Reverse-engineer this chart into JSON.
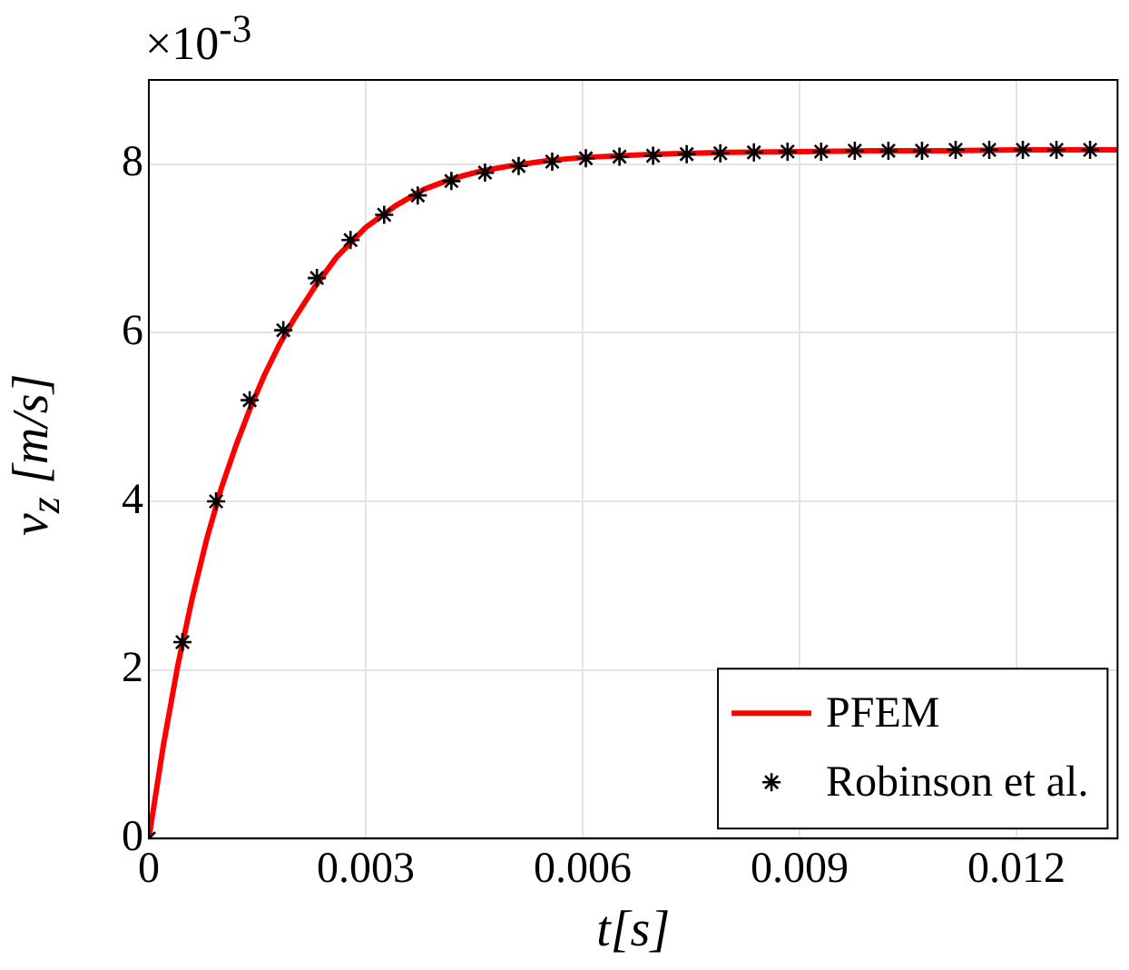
{
  "chart_data": {
    "type": "scatter",
    "xlabel": "t[s]",
    "ylabel": "v$_{z}$ [m/s]",
    "annotations": [
      "×10$^{-3}$"
    ],
    "x": [
      0,
      0.000465,
      0.00093,
      0.001395,
      0.00186,
      0.002325,
      0.00279,
      0.003255,
      0.00372,
      0.004185,
      0.00465,
      0.005115,
      0.00558,
      0.006045,
      0.00651,
      0.006975,
      0.00744,
      0.007905,
      0.00837,
      0.008835,
      0.0093,
      0.009765,
      0.01023,
      0.010695,
      0.01116,
      0.011625,
      0.01209,
      0.012555,
      0.01302
    ],
    "series": [
      {
        "name": "PFEM",
        "type": "line",
        "marker": "none",
        "color": "#ff0000",
        "x": [
          0,
          0.0002,
          0.0004,
          0.0006,
          0.0008,
          0.001,
          0.0012,
          0.0014,
          0.0016,
          0.0018,
          0.002,
          0.0023,
          0.0026,
          0.003,
          0.0034,
          0.0038,
          0.0042,
          0.0046,
          0.005,
          0.0055,
          0.006,
          0.007,
          0.008,
          0.009,
          0.01,
          0.011,
          0.012,
          0.0134
        ],
        "values": [
          0,
          1.1,
          2.05,
          2.85,
          3.55,
          4.15,
          4.65,
          5.1,
          5.5,
          5.85,
          6.15,
          6.55,
          6.9,
          7.25,
          7.5,
          7.7,
          7.83,
          7.92,
          7.98,
          8.04,
          8.08,
          8.12,
          8.14,
          8.15,
          8.16,
          8.16,
          8.17,
          8.17
        ]
      },
      {
        "name": "Robinson et al.",
        "marker": "cross",
        "color": "#000000",
        "values": [
          0,
          2.33,
          4.0,
          5.2,
          6.03,
          6.65,
          7.1,
          7.4,
          7.63,
          7.8,
          7.9,
          7.98,
          8.03,
          8.07,
          8.09,
          8.1,
          8.12,
          8.13,
          8.14,
          8.15,
          8.15,
          8.16,
          8.16,
          8.16,
          8.17,
          8.17,
          8.17,
          8.17,
          8.17
        ]
      }
    ],
    "xlim": [
      0,
      0.0134
    ],
    "xticks": [
      0,
      0.003,
      0.006,
      0.009,
      0.012
    ],
    "ylim": [
      0,
      9
    ],
    "yticks": [
      0,
      2,
      4,
      6,
      8
    ],
    "grid": true,
    "legend": "bottom right"
  }
}
